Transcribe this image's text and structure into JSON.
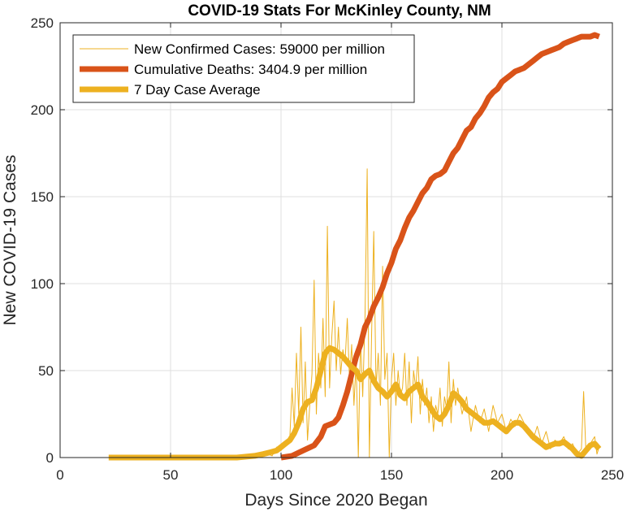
{
  "chart_data": {
    "type": "line",
    "title": "COVID-19 Stats For McKinley County, NM",
    "xlabel": "Days Since 2020 Began",
    "ylabel": "New COVID-19 Cases",
    "xlim": [
      0,
      250
    ],
    "ylim": [
      0,
      250
    ],
    "xticks": [
      "0",
      "50",
      "100",
      "150",
      "200",
      "250"
    ],
    "yticks": [
      "0",
      "50",
      "100",
      "150",
      "200",
      "250"
    ],
    "grid": true,
    "legend_position": "top-left",
    "series": [
      {
        "name": "New Confirmed Cases: 59000 per million",
        "color": "#EDB120",
        "style": "thin",
        "points": [
          [
            22,
            0
          ],
          [
            40,
            0
          ],
          [
            60,
            0
          ],
          [
            80,
            0
          ],
          [
            85,
            0
          ],
          [
            88,
            1
          ],
          [
            90,
            0
          ],
          [
            92,
            3
          ],
          [
            94,
            2
          ],
          [
            96,
            1
          ],
          [
            98,
            6
          ],
          [
            100,
            4
          ],
          [
            102,
            8
          ],
          [
            104,
            12
          ],
          [
            105,
            40
          ],
          [
            106,
            18
          ],
          [
            107,
            60
          ],
          [
            108,
            25
          ],
          [
            109,
            75
          ],
          [
            110,
            20
          ],
          [
            111,
            55
          ],
          [
            112,
            10
          ],
          [
            113,
            30
          ],
          [
            114,
            48
          ],
          [
            115,
            102
          ],
          [
            116,
            25
          ],
          [
            117,
            60
          ],
          [
            118,
            40
          ],
          [
            119,
            80
          ],
          [
            120,
            35
          ],
          [
            121,
            133
          ],
          [
            122,
            40
          ],
          [
            123,
            70
          ],
          [
            124,
            90
          ],
          [
            125,
            50
          ],
          [
            126,
            75
          ],
          [
            127,
            48
          ],
          [
            128,
            62
          ],
          [
            129,
            55
          ],
          [
            130,
            80
          ],
          [
            131,
            45
          ],
          [
            132,
            65
          ],
          [
            133,
            30
          ],
          [
            134,
            55
          ],
          [
            135,
            0
          ],
          [
            136,
            70
          ],
          [
            137,
            35
          ],
          [
            138,
            80
          ],
          [
            139,
            166
          ],
          [
            140,
            0
          ],
          [
            141,
            70
          ],
          [
            142,
            130
          ],
          [
            143,
            40
          ],
          [
            144,
            60
          ],
          [
            145,
            30
          ],
          [
            146,
            110
          ],
          [
            147,
            45
          ],
          [
            148,
            60
          ],
          [
            149,
            0
          ],
          [
            150,
            45
          ],
          [
            151,
            60
          ],
          [
            152,
            30
          ],
          [
            153,
            50
          ],
          [
            154,
            35
          ],
          [
            155,
            40
          ],
          [
            156,
            60
          ],
          [
            157,
            30
          ],
          [
            158,
            55
          ],
          [
            159,
            20
          ],
          [
            160,
            50
          ],
          [
            161,
            40
          ],
          [
            162,
            58
          ],
          [
            163,
            25
          ],
          [
            164,
            45
          ],
          [
            165,
            30
          ],
          [
            166,
            40
          ],
          [
            167,
            20
          ],
          [
            168,
            35
          ],
          [
            169,
            15
          ],
          [
            170,
            30
          ],
          [
            171,
            25
          ],
          [
            172,
            40
          ],
          [
            173,
            18
          ],
          [
            174,
            35
          ],
          [
            175,
            28
          ],
          [
            176,
            55
          ],
          [
            177,
            20
          ],
          [
            178,
            45
          ],
          [
            179,
            30
          ],
          [
            180,
            40
          ],
          [
            182,
            25
          ],
          [
            184,
            35
          ],
          [
            186,
            15
          ],
          [
            188,
            30
          ],
          [
            190,
            20
          ],
          [
            192,
            28
          ],
          [
            194,
            15
          ],
          [
            196,
            30
          ],
          [
            198,
            20
          ],
          [
            200,
            25
          ],
          [
            202,
            15
          ],
          [
            204,
            22
          ],
          [
            206,
            18
          ],
          [
            208,
            25
          ],
          [
            210,
            20
          ],
          [
            212,
            15
          ],
          [
            214,
            10
          ],
          [
            216,
            18
          ],
          [
            218,
            8
          ],
          [
            220,
            15
          ],
          [
            222,
            5
          ],
          [
            224,
            10
          ],
          [
            226,
            8
          ],
          [
            228,
            12
          ],
          [
            230,
            5
          ],
          [
            232,
            8
          ],
          [
            234,
            2
          ],
          [
            236,
            5
          ],
          [
            237,
            38
          ],
          [
            238,
            3
          ],
          [
            240,
            8
          ],
          [
            242,
            12
          ],
          [
            243,
            2
          ],
          [
            244,
            6
          ]
        ]
      },
      {
        "name": "Cumulative Deaths: 3404.9 per million",
        "color": "#D95319",
        "style": "thick",
        "points": [
          [
            100,
            0
          ],
          [
            105,
            1
          ],
          [
            110,
            4
          ],
          [
            115,
            7
          ],
          [
            118,
            12
          ],
          [
            120,
            18
          ],
          [
            124,
            20
          ],
          [
            126,
            23
          ],
          [
            128,
            30
          ],
          [
            130,
            38
          ],
          [
            132,
            48
          ],
          [
            134,
            58
          ],
          [
            136,
            65
          ],
          [
            138,
            75
          ],
          [
            140,
            80
          ],
          [
            142,
            87
          ],
          [
            144,
            92
          ],
          [
            146,
            98
          ],
          [
            148,
            106
          ],
          [
            150,
            112
          ],
          [
            152,
            120
          ],
          [
            154,
            125
          ],
          [
            156,
            132
          ],
          [
            158,
            138
          ],
          [
            160,
            142
          ],
          [
            162,
            147
          ],
          [
            164,
            152
          ],
          [
            166,
            155
          ],
          [
            168,
            160
          ],
          [
            170,
            162
          ],
          [
            172,
            163
          ],
          [
            174,
            165
          ],
          [
            176,
            170
          ],
          [
            178,
            175
          ],
          [
            180,
            178
          ],
          [
            182,
            183
          ],
          [
            184,
            188
          ],
          [
            186,
            190
          ],
          [
            188,
            195
          ],
          [
            190,
            198
          ],
          [
            192,
            202
          ],
          [
            194,
            207
          ],
          [
            196,
            210
          ],
          [
            198,
            212
          ],
          [
            200,
            216
          ],
          [
            202,
            218
          ],
          [
            204,
            220
          ],
          [
            206,
            222
          ],
          [
            208,
            223
          ],
          [
            210,
            224
          ],
          [
            212,
            226
          ],
          [
            214,
            228
          ],
          [
            216,
            230
          ],
          [
            218,
            232
          ],
          [
            220,
            233
          ],
          [
            222,
            234
          ],
          [
            224,
            235
          ],
          [
            226,
            236
          ],
          [
            228,
            238
          ],
          [
            230,
            239
          ],
          [
            232,
            240
          ],
          [
            234,
            241
          ],
          [
            236,
            242
          ],
          [
            238,
            242
          ],
          [
            240,
            242
          ],
          [
            242,
            243
          ],
          [
            244,
            242
          ]
        ]
      },
      {
        "name": "7 Day Case Average",
        "color": "#EDB120",
        "style": "thick",
        "points": [
          [
            22,
            0
          ],
          [
            40,
            0
          ],
          [
            60,
            0
          ],
          [
            80,
            0
          ],
          [
            88,
            1
          ],
          [
            92,
            2
          ],
          [
            95,
            3
          ],
          [
            98,
            4
          ],
          [
            100,
            6
          ],
          [
            102,
            8
          ],
          [
            104,
            10
          ],
          [
            106,
            14
          ],
          [
            108,
            20
          ],
          [
            110,
            28
          ],
          [
            112,
            32
          ],
          [
            114,
            33
          ],
          [
            116,
            40
          ],
          [
            118,
            50
          ],
          [
            120,
            60
          ],
          [
            122,
            63
          ],
          [
            124,
            62
          ],
          [
            126,
            60
          ],
          [
            128,
            58
          ],
          [
            130,
            55
          ],
          [
            132,
            52
          ],
          [
            134,
            50
          ],
          [
            136,
            45
          ],
          [
            138,
            48
          ],
          [
            140,
            50
          ],
          [
            142,
            44
          ],
          [
            144,
            40
          ],
          [
            146,
            38
          ],
          [
            148,
            35
          ],
          [
            150,
            38
          ],
          [
            152,
            42
          ],
          [
            154,
            36
          ],
          [
            156,
            34
          ],
          [
            158,
            38
          ],
          [
            160,
            40
          ],
          [
            162,
            42
          ],
          [
            164,
            35
          ],
          [
            166,
            32
          ],
          [
            168,
            28
          ],
          [
            170,
            24
          ],
          [
            172,
            22
          ],
          [
            174,
            25
          ],
          [
            176,
            30
          ],
          [
            178,
            37
          ],
          [
            180,
            35
          ],
          [
            182,
            32
          ],
          [
            184,
            28
          ],
          [
            186,
            26
          ],
          [
            188,
            24
          ],
          [
            190,
            22
          ],
          [
            192,
            20
          ],
          [
            194,
            20
          ],
          [
            196,
            21
          ],
          [
            198,
            19
          ],
          [
            200,
            17
          ],
          [
            202,
            15
          ],
          [
            204,
            18
          ],
          [
            206,
            20
          ],
          [
            208,
            20
          ],
          [
            210,
            18
          ],
          [
            212,
            15
          ],
          [
            214,
            12
          ],
          [
            216,
            10
          ],
          [
            218,
            8
          ],
          [
            220,
            6
          ],
          [
            222,
            7
          ],
          [
            224,
            8
          ],
          [
            226,
            8
          ],
          [
            228,
            9
          ],
          [
            230,
            7
          ],
          [
            232,
            5
          ],
          [
            234,
            2
          ],
          [
            236,
            1
          ],
          [
            238,
            4
          ],
          [
            240,
            7
          ],
          [
            242,
            8
          ],
          [
            244,
            5
          ]
        ]
      }
    ]
  }
}
